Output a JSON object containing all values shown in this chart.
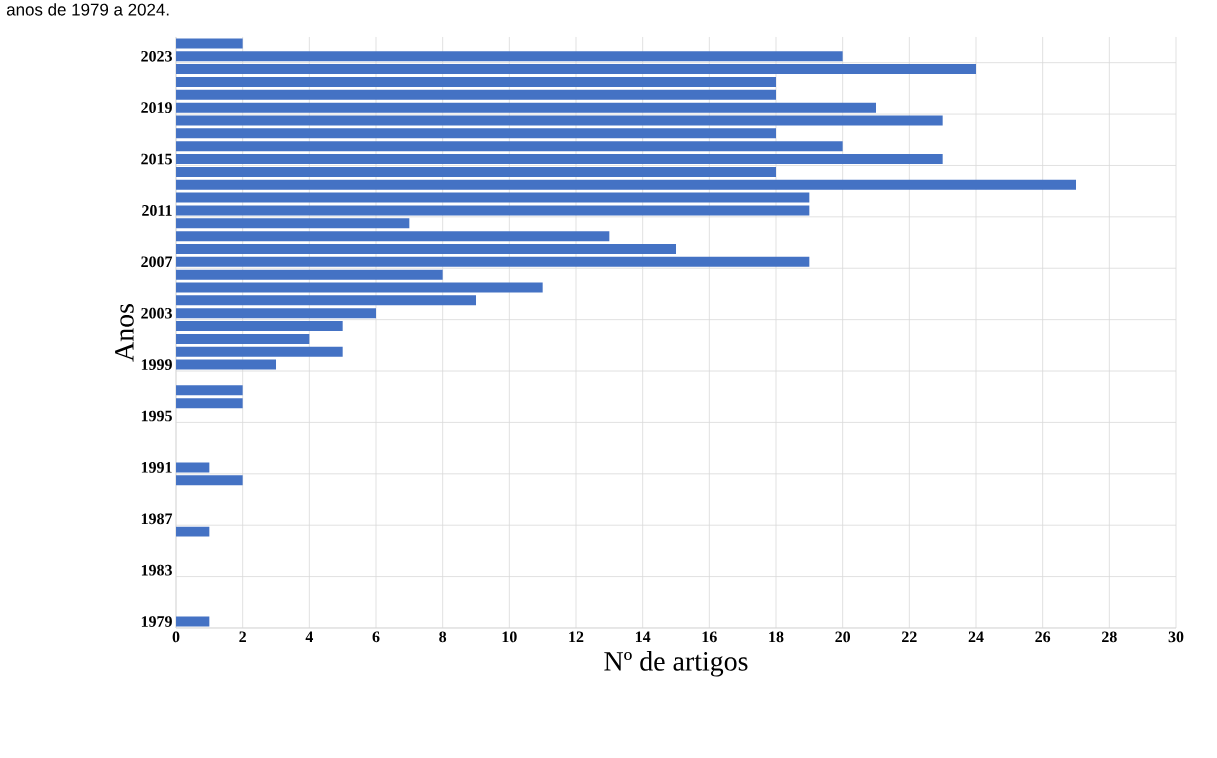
{
  "chart_data": {
    "type": "bar",
    "orientation": "horizontal",
    "title": "anos de 1979 a 2024.",
    "xlabel": "Nº de artigos",
    "ylabel": "Anos",
    "categories": [
      null,
      "2023",
      null,
      null,
      null,
      "2019",
      null,
      null,
      null,
      "2015",
      null,
      null,
      null,
      "2011",
      null,
      null,
      null,
      "2007",
      null,
      null,
      null,
      "2003",
      null,
      null,
      null,
      "1999",
      null,
      null,
      null,
      "1995",
      null,
      null,
      null,
      "1991",
      null,
      null,
      null,
      "1987",
      null,
      null,
      null,
      "1983",
      null,
      null,
      null,
      "1979"
    ],
    "values": [
      2,
      20,
      24,
      18,
      18,
      21,
      23,
      18,
      20,
      23,
      18,
      27,
      19,
      19,
      7,
      13,
      15,
      19,
      8,
      11,
      9,
      6,
      5,
      4,
      5,
      3,
      0,
      2,
      2,
      0,
      0,
      0,
      0,
      1,
      2,
      0,
      0,
      0,
      1,
      0,
      0,
      0,
      0,
      0,
      0,
      1
    ],
    "color": "#4472c4",
    "xlim": [
      0,
      30
    ],
    "xticks": [
      0,
      2,
      4,
      6,
      8,
      10,
      12,
      14,
      16,
      18,
      20,
      22,
      24,
      26,
      28,
      30
    ],
    "grid": true
  }
}
